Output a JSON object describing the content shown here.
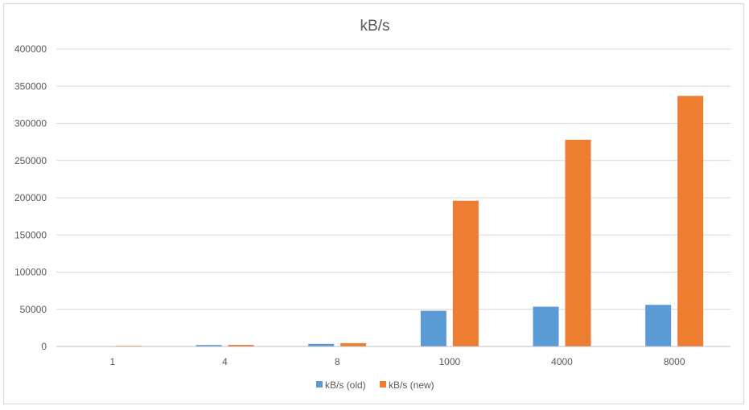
{
  "chart_data": {
    "type": "bar",
    "title": "kB/s",
    "xlabel": "",
    "ylabel": "",
    "categories": [
      "1",
      "4",
      "8",
      "1000",
      "4000",
      "8000"
    ],
    "series": [
      {
        "name": "kB/s (old)",
        "color": "#5b9bd5",
        "values": [
          300,
          2000,
          3500,
          48000,
          53500,
          56000
        ]
      },
      {
        "name": "kB/s (new)",
        "color": "#ed7d31",
        "values": [
          900,
          2200,
          4500,
          196000,
          278000,
          337000
        ]
      }
    ],
    "ylim": [
      0,
      400000
    ],
    "yticks": [
      "0",
      "50000",
      "100000",
      "150000",
      "200000",
      "250000",
      "300000",
      "350000",
      "400000"
    ],
    "grid": true,
    "legend_position": "bottom"
  }
}
